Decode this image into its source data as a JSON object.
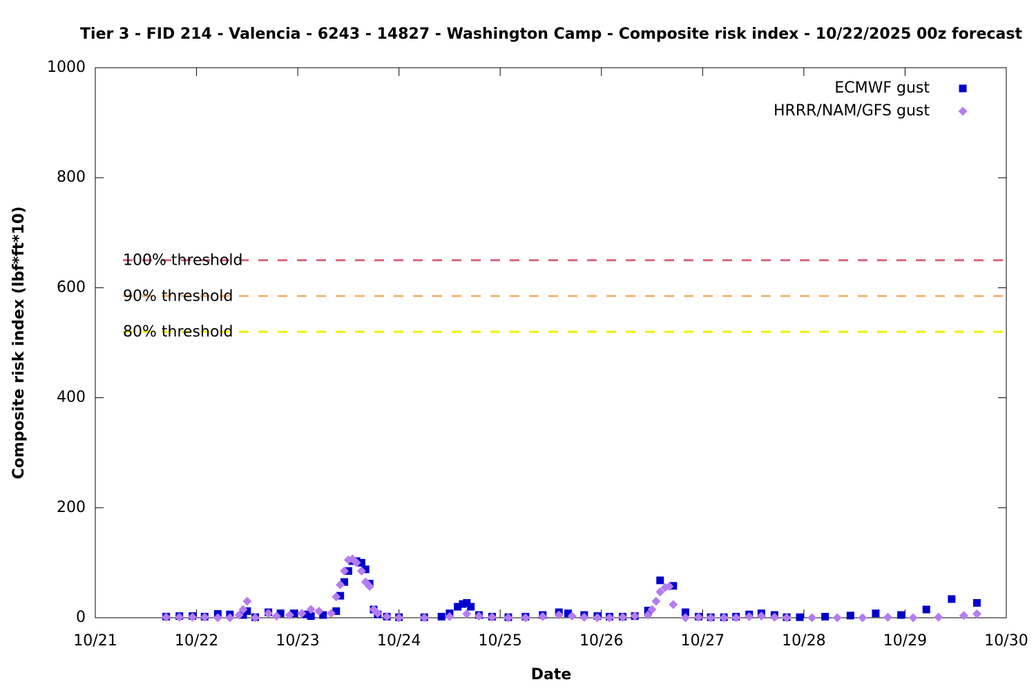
{
  "chart_data": {
    "type": "scatter",
    "title": "Tier 3 - FID 214 - Valencia - 6243 - 14827 - Washington Camp - Composite risk index - 10/22/2025 00z forecast",
    "x_label": "Date",
    "y_label": "Composite risk index (lbf*ft*10)",
    "xlim": [
      21,
      30
    ],
    "xticks": [
      {
        "value": 21,
        "label": "10/21"
      },
      {
        "value": 22,
        "label": "10/22"
      },
      {
        "value": 23,
        "label": "10/23"
      },
      {
        "value": 24,
        "label": "10/24"
      },
      {
        "value": 25,
        "label": "10/25"
      },
      {
        "value": 26,
        "label": "10/26"
      },
      {
        "value": 27,
        "label": "10/27"
      },
      {
        "value": 28,
        "label": "10/28"
      },
      {
        "value": 29,
        "label": "10/29"
      },
      {
        "value": 30,
        "label": "10/30"
      }
    ],
    "ylim": [
      0,
      1000
    ],
    "yticks": [
      0,
      200,
      400,
      600,
      800,
      1000
    ],
    "legend": "top-right",
    "thresholds": [
      {
        "label": "100% threshold",
        "value": 650,
        "color": "#d9667f"
      },
      {
        "label": "90% threshold",
        "value": 585,
        "color": "#f2b577"
      },
      {
        "label": "80% threshold",
        "value": 520,
        "color": "#f0f000"
      }
    ],
    "series": [
      {
        "name": "ECMWF gust",
        "color": "#0000cc",
        "marker": "square",
        "x": [
          21.7,
          21.83,
          21.96,
          22.08,
          22.21,
          22.33,
          22.46,
          22.5,
          22.58,
          22.71,
          22.83,
          22.96,
          23.08,
          23.13,
          23.25,
          23.38,
          23.42,
          23.46,
          23.5,
          23.54,
          23.58,
          23.63,
          23.67,
          23.71,
          23.75,
          23.79,
          23.88,
          24.0,
          24.25,
          24.42,
          24.5,
          24.58,
          24.63,
          24.67,
          24.71,
          24.79,
          24.92,
          25.08,
          25.25,
          25.42,
          25.58,
          25.67,
          25.83,
          25.96,
          26.08,
          26.21,
          26.33,
          26.46,
          26.58,
          26.71,
          26.83,
          26.96,
          27.08,
          27.21,
          27.33,
          27.46,
          27.58,
          27.71,
          27.83,
          27.96,
          28.21,
          28.46,
          28.71,
          28.96,
          29.21,
          29.46,
          29.71
        ],
        "values": [
          2,
          3,
          3,
          2,
          7,
          6,
          5,
          12,
          1,
          10,
          8,
          8,
          6,
          3,
          5,
          12,
          40,
          65,
          85,
          103,
          103,
          100,
          88,
          62,
          15,
          6,
          2,
          1,
          1,
          2,
          8,
          20,
          25,
          27,
          20,
          5,
          2,
          1,
          2,
          5,
          10,
          8,
          5,
          3,
          2,
          2,
          3,
          13,
          68,
          58,
          10,
          2,
          1,
          1,
          2,
          6,
          8,
          5,
          1,
          1,
          2,
          4,
          8,
          5,
          15,
          34,
          27
        ]
      },
      {
        "name": "HRRR/NAM/GFS gust",
        "color": "#b57cf2",
        "marker": "diamond",
        "x": [
          21.7,
          21.83,
          21.96,
          22.08,
          22.21,
          22.33,
          22.42,
          22.46,
          22.5,
          22.58,
          22.71,
          22.79,
          22.92,
          23.04,
          23.13,
          23.21,
          23.33,
          23.38,
          23.42,
          23.46,
          23.5,
          23.54,
          23.58,
          23.63,
          23.67,
          23.71,
          23.75,
          23.79,
          23.88,
          24.0,
          24.25,
          24.5,
          24.67,
          24.79,
          24.92,
          25.08,
          25.25,
          25.42,
          25.58,
          25.71,
          25.83,
          25.96,
          26.08,
          26.21,
          26.33,
          26.46,
          26.5,
          26.54,
          26.58,
          26.63,
          26.67,
          26.71,
          26.83,
          26.96,
          27.08,
          27.21,
          27.33,
          27.46,
          27.58,
          27.71,
          27.83,
          28.08,
          28.33,
          28.58,
          28.83,
          29.08,
          29.33,
          29.58,
          29.71
        ],
        "values": [
          1,
          1,
          1,
          1,
          0,
          0,
          5,
          15,
          30,
          0,
          8,
          3,
          5,
          8,
          15,
          12,
          8,
          38,
          60,
          85,
          105,
          107,
          100,
          85,
          65,
          57,
          15,
          8,
          2,
          0,
          0,
          2,
          7,
          3,
          1,
          0,
          0,
          2,
          5,
          3,
          1,
          0,
          0,
          1,
          3,
          5,
          15,
          30,
          47,
          55,
          57,
          24,
          0,
          1,
          0,
          0,
          0,
          2,
          3,
          1,
          0,
          0,
          0,
          0,
          1,
          0,
          1,
          4,
          7
        ]
      }
    ]
  }
}
